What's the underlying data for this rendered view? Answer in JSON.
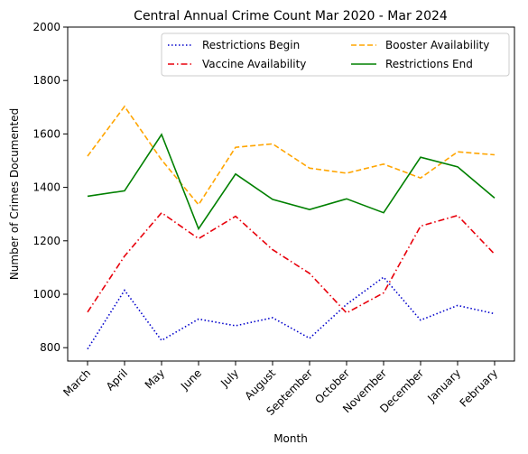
{
  "chart_data": {
    "type": "line",
    "title": "Central Annual Crime Count Mar 2020 - Mar 2024",
    "xlabel": "Month",
    "ylabel": "Number of Crimes Documented",
    "categories": [
      "March",
      "April",
      "May",
      "June",
      "July",
      "August",
      "September",
      "October",
      "November",
      "December",
      "January",
      "February"
    ],
    "ylim": [
      750,
      2000
    ],
    "yticks": [
      800,
      1000,
      1200,
      1400,
      1600,
      1800,
      2000
    ],
    "grid": false,
    "legend_position": "top-right",
    "series": [
      {
        "name": "Restrictions Begin",
        "color": "#0000cc",
        "style": "dotted",
        "values": [
          795,
          1015,
          827,
          907,
          882,
          912,
          835,
          962,
          1064,
          903,
          958,
          927
        ]
      },
      {
        "name": "Vaccine Availability",
        "color": "#e8000b",
        "style": "dashdot",
        "values": [
          933,
          1143,
          1305,
          1208,
          1292,
          1167,
          1078,
          930,
          1005,
          1255,
          1295,
          1150
        ]
      },
      {
        "name": "Booster Availability",
        "color": "#ffa500",
        "style": "dashed",
        "values": [
          1517,
          1703,
          1503,
          1335,
          1550,
          1563,
          1472,
          1453,
          1487,
          1435,
          1533,
          1522
        ]
      },
      {
        "name": "Restrictions End",
        "color": "#008000",
        "style": "solid",
        "values": [
          1367,
          1387,
          1598,
          1245,
          1450,
          1355,
          1317,
          1357,
          1305,
          1513,
          1477,
          1360
        ]
      }
    ]
  }
}
